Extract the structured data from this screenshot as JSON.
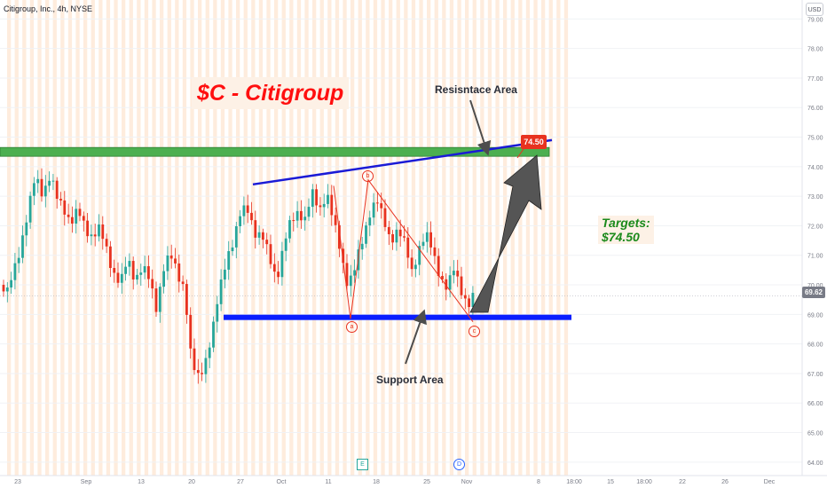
{
  "symbol": "Citigroup, Inc., 4h, NYSE",
  "currency_button": "USD",
  "title": "$C - Citigroup",
  "targets": {
    "line1": "Targets:",
    "line2": "$74.50"
  },
  "annotations": {
    "resistance": "Resisntace Area",
    "support": "Support Area"
  },
  "target_price_label": "74.50",
  "last_price_label": "69.62",
  "wave_labels": [
    "a",
    "b",
    "c"
  ],
  "events": {
    "earnings": "E",
    "dividend": "D"
  },
  "colors": {
    "up": "#26a69a",
    "down": "#e8321f",
    "resistance_zone": "#4caf50",
    "trendline": "#1a1ad6",
    "support_line": "#0a1eff",
    "arrow": "#4d4d4d"
  },
  "chart_data": {
    "type": "candlestick",
    "y_axis": {
      "ticks": [
        64.0,
        65.0,
        66.0,
        67.0,
        68.0,
        69.0,
        70.0,
        71.0,
        72.0,
        73.0,
        74.0,
        75.0,
        76.0,
        77.0,
        78.0,
        79.0
      ],
      "ylim": [
        63.5,
        80.0
      ]
    },
    "x_axis": {
      "ticks": [
        "23",
        "Sep",
        "13",
        "20",
        "27",
        "Oct",
        "11",
        "18",
        "25",
        "Nov",
        "8",
        "18:00",
        "15",
        "18:00",
        "22",
        "26",
        "Dec"
      ]
    },
    "resistance_zone": [
      74.35,
      74.65
    ],
    "resistance_trendline": {
      "from": 73.4,
      "to": 74.9
    },
    "support_level": 68.9,
    "target_price": 74.5,
    "last_price": 69.62,
    "wave_points": {
      "b_from": 68.85,
      "b": 73.55,
      "c": 68.75
    }
  }
}
